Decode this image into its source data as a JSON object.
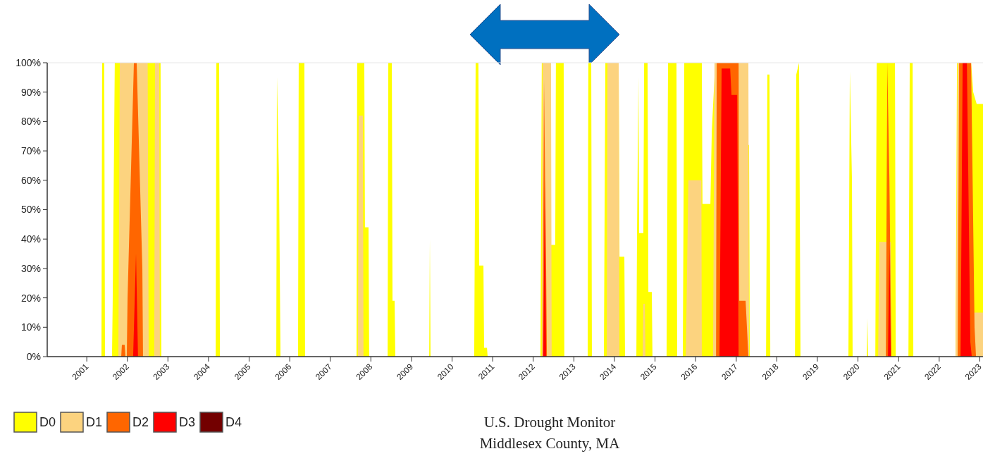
{
  "chart_data": {
    "type": "area",
    "xlim": [
      "2000-01-11",
      "2023-01-30"
    ],
    "xticks": [
      {
        "value": "2001",
        "label": "2001"
      },
      {
        "value": "2002",
        "label": "2002"
      },
      {
        "value": "2003",
        "label": "2003"
      },
      {
        "value": "2004",
        "label": "2004"
      },
      {
        "value": "2005",
        "label": "2005"
      },
      {
        "value": "2006",
        "label": "2006"
      },
      {
        "value": "2007",
        "label": "2007"
      },
      {
        "value": "2008",
        "label": "2008"
      },
      {
        "value": "2009",
        "label": "2009"
      },
      {
        "value": "2010",
        "label": "2010"
      },
      {
        "value": "2011",
        "label": "2011"
      },
      {
        "value": "2012",
        "label": "2012"
      },
      {
        "value": "2013",
        "label": "2013"
      },
      {
        "value": "2014",
        "label": "2014"
      },
      {
        "value": "2015",
        "label": "2015"
      },
      {
        "value": "2016",
        "label": "2016"
      },
      {
        "value": "2017",
        "label": "2017"
      },
      {
        "value": "2018",
        "label": "2018"
      },
      {
        "value": "2019",
        "label": "2019"
      },
      {
        "value": "2020",
        "label": "2020"
      },
      {
        "value": "2021",
        "label": "2021"
      },
      {
        "value": "2022",
        "label": "2022"
      },
      {
        "value": "2023",
        "label": "2023"
      }
    ],
    "ylim": [
      0,
      100
    ],
    "yticks": [
      {
        "value": 0,
        "label": "0%"
      },
      {
        "value": 10,
        "label": "10%"
      },
      {
        "value": 20,
        "label": "20%"
      },
      {
        "value": 30,
        "label": "30%"
      },
      {
        "value": 40,
        "label": "40%"
      },
      {
        "value": 50,
        "label": "50%"
      },
      {
        "value": 60,
        "label": "60%"
      },
      {
        "value": 70,
        "label": "70%"
      },
      {
        "value": 80,
        "label": "80%"
      },
      {
        "value": 90,
        "label": "90%"
      },
      {
        "value": 100,
        "label": "100%"
      }
    ],
    "legend": "bottom left",
    "grid": false,
    "annotations": [
      "U.S. Drought Monitor",
      "Middlesex County, MA"
    ],
    "series": [
      {
        "name": "D0",
        "color": "#ffff00",
        "x": [
          "2001-05-13",
          "2001-05-19",
          "2001-06-07",
          "2001-06-14",
          "2001-08-16",
          "2001-08-22",
          "2001-09-10",
          "2002-10-27",
          "2002-11-03",
          "2004-03-06",
          "2004-03-12",
          "2004-04-06",
          "2004-04-13",
          "2005-09-02",
          "2005-09-08",
          "2005-09-27",
          "2005-10-10",
          "2006-03-17",
          "2006-03-23",
          "2006-05-13",
          "2006-05-19",
          "2007-08-25",
          "2007-08-31",
          "2007-11-03",
          "2007-11-09",
          "2007-12-11",
          "2007-12-17",
          "2008-05-31",
          "2008-06-06",
          "2008-07-08",
          "2008-07-14",
          "2008-08-02",
          "2008-08-08",
          "2009-06-09",
          "2009-06-15",
          "2009-06-21",
          "2010-07-19",
          "2010-08-01",
          "2010-08-26",
          "2010-09-02",
          "2010-10-10",
          "2010-10-16",
          "2010-11-11",
          "2010-11-17",
          "2012-03-06",
          "2012-03-18",
          "2012-06-03",
          "2012-06-09",
          "2012-07-17",
          "2012-07-23",
          "2012-10-01",
          "2012-10-07",
          "2013-05-05",
          "2013-05-11",
          "2013-06-06",
          "2013-06-12",
          "2013-09-28",
          "2013-10-11",
          "2014-02-08",
          "2014-02-15",
          "2014-03-31",
          "2014-04-06",
          "2014-07-17",
          "2014-07-23",
          "2014-08-05",
          "2014-08-11",
          "2014-09-18",
          "2014-09-25",
          "2014-10-26",
          "2014-11-02",
          "2014-12-03",
          "2014-12-09",
          "2015-04-15",
          "2015-04-28",
          "2015-07-13",
          "2015-07-19",
          "2015-09-08",
          "2015-09-21",
          "2016-02-26",
          "2016-03-03",
          "2016-05-13",
          "2016-05-26",
          "2016-06-26",
          "2017-04-07",
          "2017-04-14",
          "2017-04-26",
          "2017-05-03",
          "2017-09-26",
          "2017-10-08",
          "2017-10-27",
          "2017-11-03",
          "2018-06-13",
          "2018-06-25",
          "2018-07-20",
          "2018-08-02",
          "2019-10-07",
          "2019-10-20",
          "2019-11-08",
          "2019-11-14",
          "2020-03-20",
          "2020-03-26",
          "2020-04-01",
          "2020-06-05",
          "2020-06-18",
          "2020-11-29",
          "2020-12-06",
          "2021-03-30",
          "2021-04-11",
          "2021-05-07",
          "2021-05-13",
          "2022-05-28",
          "2022-06-10",
          "2022-10-15",
          "2022-11-03",
          "2022-12-04",
          "2023-01-30"
        ],
        "values": [
          0,
          100,
          100,
          0,
          0,
          18,
          100,
          100,
          0,
          0,
          100,
          100,
          0,
          0,
          95,
          60,
          0,
          0,
          100,
          100,
          0,
          0,
          100,
          100,
          44,
          44,
          0,
          0,
          100,
          100,
          19,
          19,
          0,
          0,
          40,
          0,
          0,
          100,
          100,
          31,
          31,
          3,
          3,
          0,
          0,
          100,
          100,
          38,
          38,
          100,
          100,
          0,
          0,
          100,
          100,
          0,
          0,
          100,
          100,
          34,
          34,
          0,
          0,
          42,
          95,
          42,
          42,
          100,
          100,
          22,
          22,
          0,
          0,
          100,
          100,
          0,
          0,
          100,
          100,
          52,
          52,
          77,
          100,
          100,
          72,
          72,
          0,
          0,
          96,
          96,
          0,
          0,
          96,
          100,
          0,
          0,
          97,
          60,
          0,
          0,
          13,
          0,
          0,
          100,
          100,
          0,
          0,
          100,
          100,
          0,
          0,
          100,
          100,
          90,
          86,
          86
        ]
      },
      {
        "name": "D1",
        "color": "#fcd37f",
        "x": [
          "2001-10-12",
          "2001-10-25",
          "2002-07-03",
          "2002-07-12",
          "2002-08-31",
          "2002-09-07",
          "2002-10-15",
          "2002-10-21",
          "2007-09-07",
          "2007-09-13",
          "2007-10-21",
          "2007-10-27",
          "2012-03-18",
          "2012-03-25",
          "2012-06-09",
          "2012-06-15",
          "2013-10-24",
          "2013-10-30",
          "2014-02-08",
          "2014-02-15",
          "2014-09-12",
          "2014-09-18",
          "2014-10-01",
          "2014-10-07",
          "2015-10-04",
          "2015-10-10",
          "2015-10-28",
          "2016-02-22",
          "2016-02-26",
          "2016-06-06",
          "2016-06-19",
          "2017-04-20",
          "2017-04-26",
          "2020-06-30",
          "2020-07-12",
          "2020-10-22",
          "2020-10-28",
          "2022-05-28",
          "2022-06-04",
          "2022-06-16",
          "2022-10-15",
          "2022-10-30",
          "2023-01-30"
        ],
        "values": [
          0,
          100,
          100,
          0,
          0,
          100,
          100,
          0,
          0,
          82,
          82,
          0,
          0,
          100,
          100,
          0,
          0,
          100,
          100,
          0,
          0,
          18,
          18,
          0,
          0,
          13,
          60,
          60,
          0,
          0,
          100,
          100,
          0,
          0,
          39,
          39,
          0,
          0,
          29,
          100,
          100,
          15,
          15
        ]
      },
      {
        "name": "D2",
        "color": "#ff6600",
        "x": [
          "2001-11-07",
          "2001-11-13",
          "2001-12-08",
          "2001-12-15",
          "2001-12-27",
          "2002-01-03",
          "2002-03-01",
          "2002-03-26",
          "2002-05-16",
          "2002-05-22",
          "2012-03-25",
          "2012-04-07",
          "2012-04-26",
          "2012-05-03",
          "2016-07-03",
          "2016-07-09",
          "2017-01-22",
          "2017-01-28",
          "2017-03-26",
          "2017-04-20",
          "2020-09-08",
          "2020-09-21",
          "2020-10-10",
          "2020-10-28",
          "2022-06-16",
          "2022-06-29",
          "2022-10-15",
          "2022-11-15",
          "2022-11-28"
        ],
        "values": [
          0,
          4,
          4,
          0,
          0,
          20,
          100,
          100,
          30,
          0,
          0,
          94,
          30,
          0,
          0,
          100,
          100,
          19,
          19,
          0,
          0,
          100,
          60,
          0,
          0,
          100,
          100,
          10,
          0
        ]
      },
      {
        "name": "D3",
        "color": "#ff0000",
        "x": [
          "2002-02-22",
          "2002-03-20",
          "2002-04-07",
          "2012-04-01",
          "2012-04-14",
          "2012-04-26",
          "2016-08-03",
          "2016-08-22",
          "2016-11-07",
          "2016-11-19",
          "2017-01-09",
          "2017-01-22",
          "2020-09-27",
          "2020-10-10",
          "2020-10-22",
          "2022-07-12",
          "2022-07-31",
          "2022-09-07",
          "2022-10-08",
          "2022-10-21"
        ],
        "values": [
          0,
          35,
          0,
          0,
          60,
          0,
          0,
          98,
          98,
          89,
          89,
          0,
          0,
          38,
          0,
          0,
          100,
          100,
          5,
          0
        ]
      },
      {
        "name": "D4",
        "color": "#730000"
      }
    ]
  }
}
